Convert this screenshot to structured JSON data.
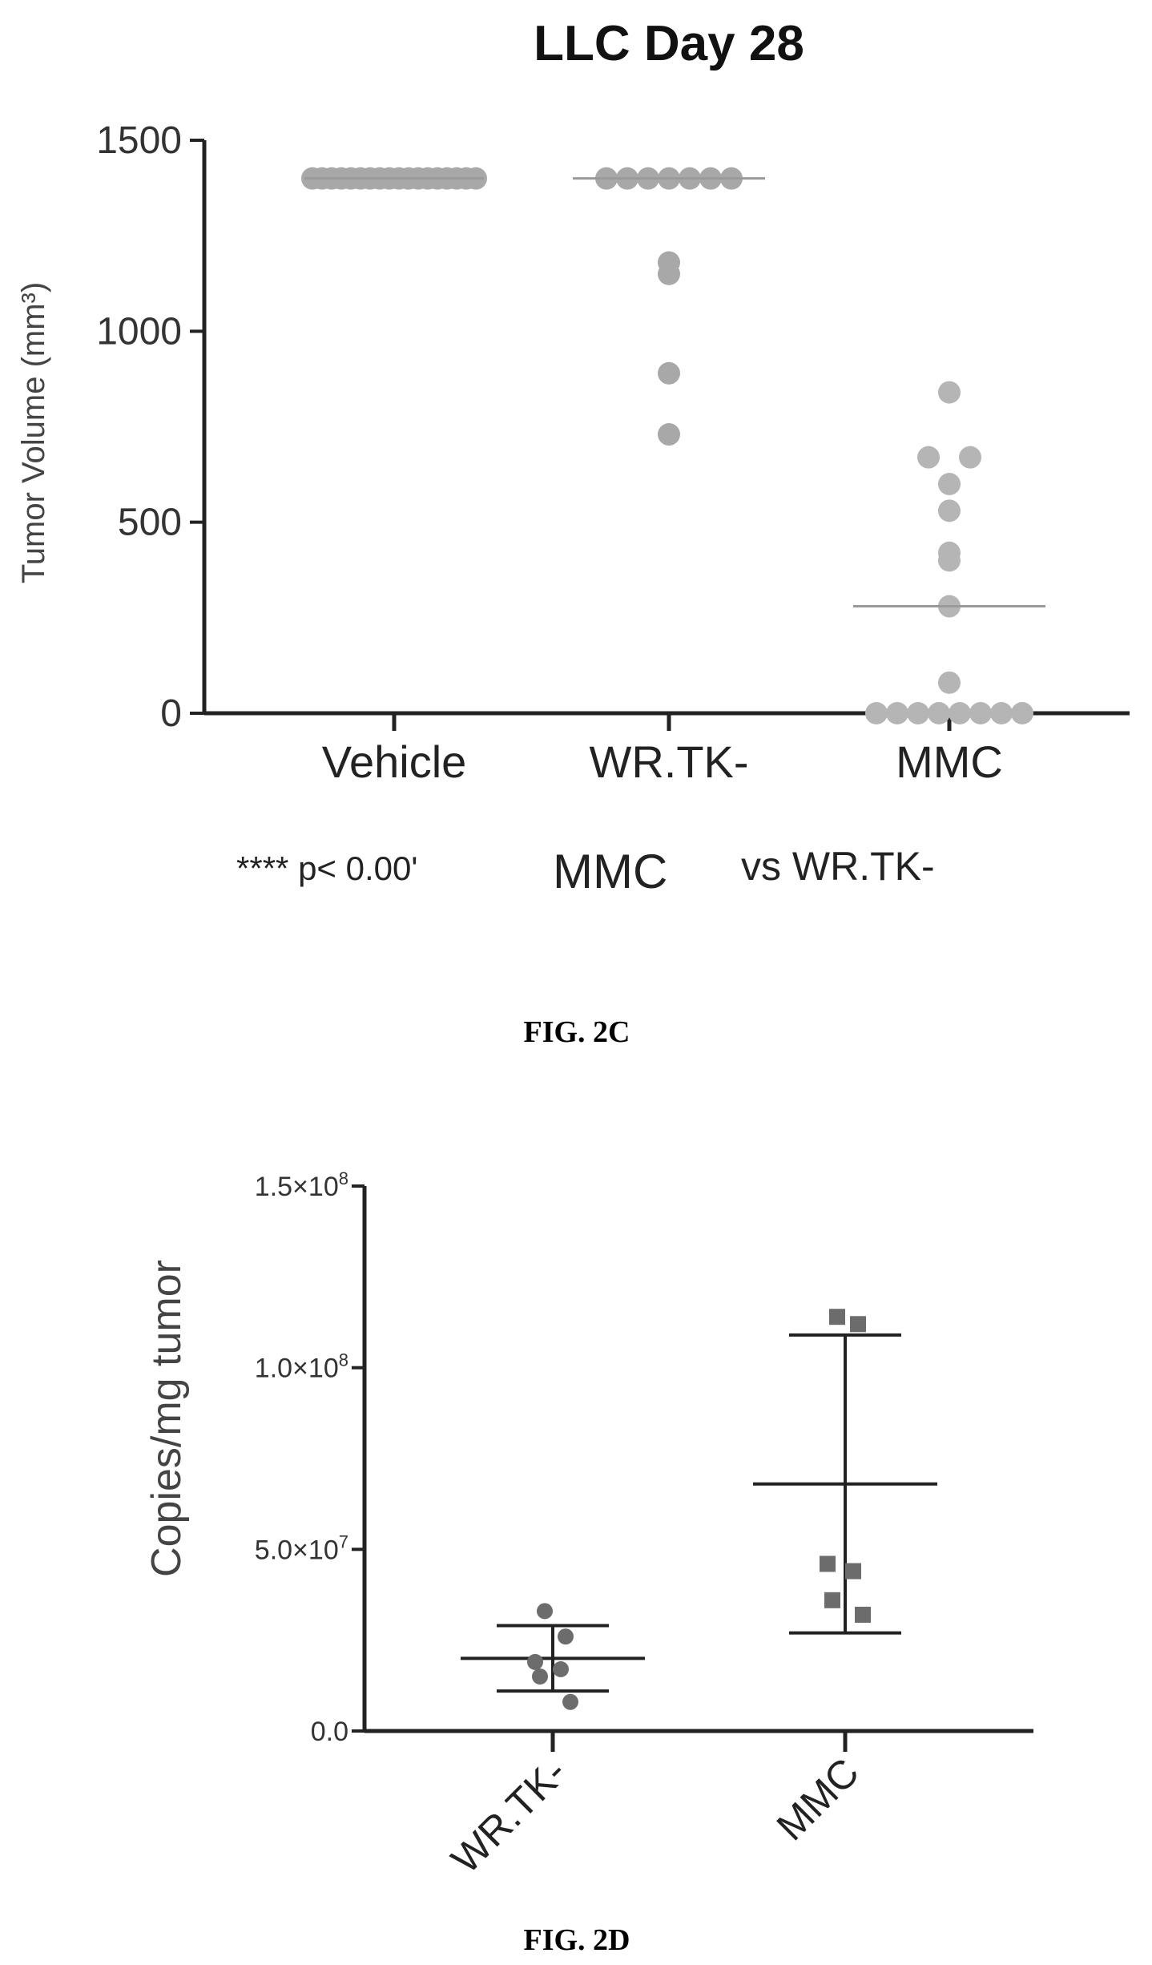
{
  "chart_data": [
    {
      "type": "scatter",
      "title": "LLC Day 28",
      "ylabel": "Tumor Volume (mm³)",
      "xlabel": "",
      "ylim": [
        0,
        1500
      ],
      "yticks": [
        "0",
        "500",
        "1000",
        "1500"
      ],
      "categories": [
        "Vehicle",
        "WR.TK-",
        "MMC"
      ],
      "series": [
        {
          "category": "Vehicle",
          "values": [
            1400,
            1400,
            1400,
            1400,
            1400,
            1400,
            1400,
            1400,
            1400,
            1400,
            1400,
            1400,
            1400,
            1400,
            1400,
            1400,
            1400,
            1400
          ],
          "median": 1400
        },
        {
          "category": "WR.TK-",
          "values": [
            1400,
            1400,
            1400,
            1400,
            1400,
            1400,
            1400,
            1180,
            1150,
            890,
            730
          ],
          "median": 1400
        },
        {
          "category": "MMC",
          "values": [
            840,
            670,
            670,
            600,
            530,
            420,
            400,
            280,
            80,
            0,
            0,
            0,
            0,
            0,
            0,
            0,
            0
          ],
          "median": 280
        }
      ],
      "annotation": {
        "stars": "****",
        "pvalue": "p< 0.00",
        "trail": "'",
        "group_a": "MMC",
        "group_b": "vs WR.TK-"
      },
      "caption": "FIG. 2C",
      "grid": false,
      "legend": "none"
    },
    {
      "type": "scatter",
      "title": "",
      "ylabel": "Copies/mg tumor",
      "xlabel": "",
      "ylim": [
        0,
        150000000
      ],
      "yticks": [
        {
          "value": 0,
          "mant": "0.0",
          "exp": ""
        },
        {
          "value": 50000000,
          "mant": "5.0×10",
          "exp": "7"
        },
        {
          "value": 100000000,
          "mant": "1.0×10",
          "exp": "8"
        },
        {
          "value": 150000000,
          "mant": "1.5×10",
          "exp": "8"
        }
      ],
      "categories": [
        "WR.TK-",
        "MMC"
      ],
      "series": [
        {
          "category": "WR.TK-",
          "marker": "circle",
          "values": [
            33000000,
            26000000,
            19000000,
            17000000,
            15000000,
            8000000
          ],
          "mean": 20000000,
          "sd_low": 11000000,
          "sd_high": 29000000
        },
        {
          "category": "MMC",
          "marker": "square",
          "values": [
            114000000,
            112000000,
            46000000,
            44000000,
            36000000,
            32000000
          ],
          "mean": 68000000,
          "sd_low": 27000000,
          "sd_high": 109000000
        }
      ],
      "caption": "FIG. 2D",
      "grid": false,
      "legend": "none"
    }
  ],
  "colors": {
    "axis": "#222222",
    "marker_top": "#a8a8a8",
    "marker_bottom": "#6c6c6c",
    "text": "#222222"
  }
}
